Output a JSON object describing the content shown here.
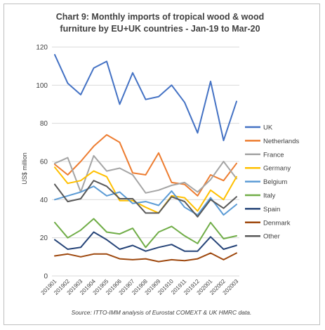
{
  "chart_data": {
    "type": "line",
    "title": "Chart 9: Monthly imports of tropical wood & wood furniture by EU+UK countries - Jan-19 to Mar-20",
    "title_lines": [
      "Chart 9: Monthly imports of tropical wood & wood",
      "furniture by EU+UK countries - Jan-19 to Mar-20"
    ],
    "ylabel": "US$ million",
    "xlabel": "",
    "ylim": [
      0,
      120
    ],
    "yticks": [
      0,
      20,
      40,
      60,
      80,
      100,
      120
    ],
    "grid": "horizontal",
    "legend_position": "right",
    "source": "Source: ITTO-IMM analysis of Eurostat COMEXT & UK HMRC data.",
    "x": [
      "201901",
      "201902",
      "201903",
      "201904",
      "201905",
      "201906",
      "201907",
      "201908",
      "201909",
      "201910",
      "201911",
      "201912",
      "202001",
      "202002",
      "202003"
    ],
    "series": [
      {
        "name": "UK",
        "color": "#4472c4",
        "values": [
          116,
          101,
          95,
          109,
          112.5,
          90,
          106.5,
          92.5,
          94,
          100,
          91,
          75,
          102,
          71,
          91.5
        ]
      },
      {
        "name": "Netherlands",
        "color": "#ed7d31",
        "values": [
          58.5,
          53,
          60,
          68,
          74,
          70,
          54,
          53,
          64.5,
          49,
          48,
          42,
          53,
          50,
          59
        ]
      },
      {
        "name": "France",
        "color": "#a5a5a5",
        "values": [
          59,
          62,
          44,
          63,
          55,
          56.5,
          53,
          43.5,
          45,
          47.5,
          49,
          44,
          50.5,
          60,
          51
        ]
      },
      {
        "name": "Germany",
        "color": "#ffc000",
        "values": [
          57,
          48.5,
          50,
          55,
          52,
          39.5,
          39.5,
          36,
          33,
          42,
          41,
          34,
          45,
          40,
          52
        ]
      },
      {
        "name": "Belgium",
        "color": "#5b9bd5",
        "values": [
          40,
          42,
          44,
          47,
          42,
          44,
          38,
          39,
          37,
          44.5,
          36,
          32,
          41,
          32,
          37.5
        ]
      },
      {
        "name": "Italy",
        "color": "#70ad47",
        "values": [
          28,
          20,
          24,
          30,
          23,
          22,
          25,
          15,
          23,
          26,
          21,
          17,
          28,
          19.5,
          21
        ]
      },
      {
        "name": "Spain",
        "color": "#264478",
        "values": [
          19,
          14,
          15,
          23,
          19,
          14,
          16,
          13,
          15,
          16.5,
          13,
          13,
          20.5,
          14,
          16
        ]
      },
      {
        "name": "Denmark",
        "color": "#9e480e",
        "values": [
          10.5,
          11.5,
          10,
          11.5,
          11.5,
          9,
          8.5,
          9,
          7.5,
          8.5,
          8,
          9,
          12,
          8.5,
          12
        ]
      },
      {
        "name": "Other",
        "color": "#595959",
        "values": [
          48,
          39,
          40.5,
          50,
          47,
          40.5,
          40.5,
          33,
          33,
          41.5,
          39,
          31,
          40,
          35.5,
          41.5
        ]
      }
    ]
  }
}
